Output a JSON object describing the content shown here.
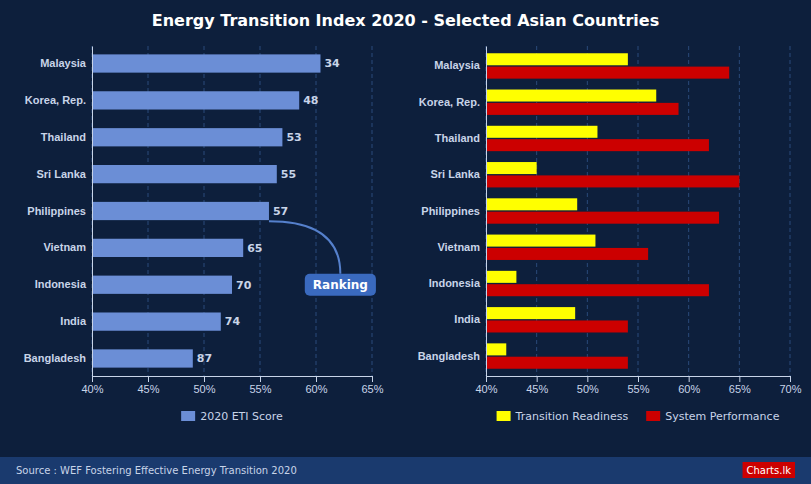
{
  "chart_data": [
    {
      "type": "bar",
      "title": "Energy Transition Index 2020 - Selected Asian Countries",
      "orientation": "horizontal",
      "categories": [
        "Malaysia",
        "Korea, Rep.",
        "Thailand",
        "Sri Lanka",
        "Philippines",
        "Vietnam",
        "Indonesia",
        "India",
        "Bangladesh"
      ],
      "series": [
        {
          "name": "2020 ETI Score",
          "color": "#6b8ed6",
          "values": [
            0.604,
            0.585,
            0.57,
            0.565,
            0.558,
            0.535,
            0.525,
            0.515,
            0.49
          ],
          "rankings": [
            34,
            48,
            53,
            55,
            57,
            65,
            70,
            74,
            87
          ]
        }
      ],
      "xlim": [
        0.4,
        0.65
      ],
      "xticks": [
        {
          "value": 0.4,
          "label": "40%"
        },
        {
          "value": 0.45,
          "label": "45%"
        },
        {
          "value": 0.5,
          "label": "50%"
        },
        {
          "value": 0.55,
          "label": "55%"
        },
        {
          "value": 0.6,
          "label": "60%"
        },
        {
          "value": 0.65,
          "label": "65%"
        }
      ],
      "grid": true,
      "legend": "bottom",
      "annotations": [
        "Ranking",
        "Source : WEF Fostering Effective Energy Transition 2020",
        "Charts.lk"
      ]
    },
    {
      "type": "bar",
      "orientation": "horizontal",
      "categories": [
        "Malaysia",
        "Korea, Rep.",
        "Thailand",
        "Sri Lanka",
        "Philippines",
        "Vietnam",
        "Indonesia",
        "India",
        "Bangladesh"
      ],
      "series": [
        {
          "name": "Transition Readiness",
          "color": "#ffff00",
          "values": [
            0.54,
            0.568,
            0.51,
            0.45,
            0.49,
            0.508,
            0.43,
            0.488,
            0.42
          ]
        },
        {
          "name": "System Performance",
          "color": "#cc0000",
          "values": [
            0.64,
            0.59,
            0.62,
            0.65,
            0.63,
            0.56,
            0.62,
            0.54,
            0.54
          ]
        }
      ],
      "xlim": [
        0.4,
        0.7
      ],
      "xticks": [
        {
          "value": 0.4,
          "label": "40%"
        },
        {
          "value": 0.45,
          "label": "45%"
        },
        {
          "value": 0.5,
          "label": "50%"
        },
        {
          "value": 0.55,
          "label": "55%"
        },
        {
          "value": 0.6,
          "label": "60%"
        },
        {
          "value": 0.65,
          "label": "65%"
        },
        {
          "value": 0.7,
          "label": "70%"
        }
      ],
      "grid": true,
      "legend": "bottom"
    }
  ]
}
